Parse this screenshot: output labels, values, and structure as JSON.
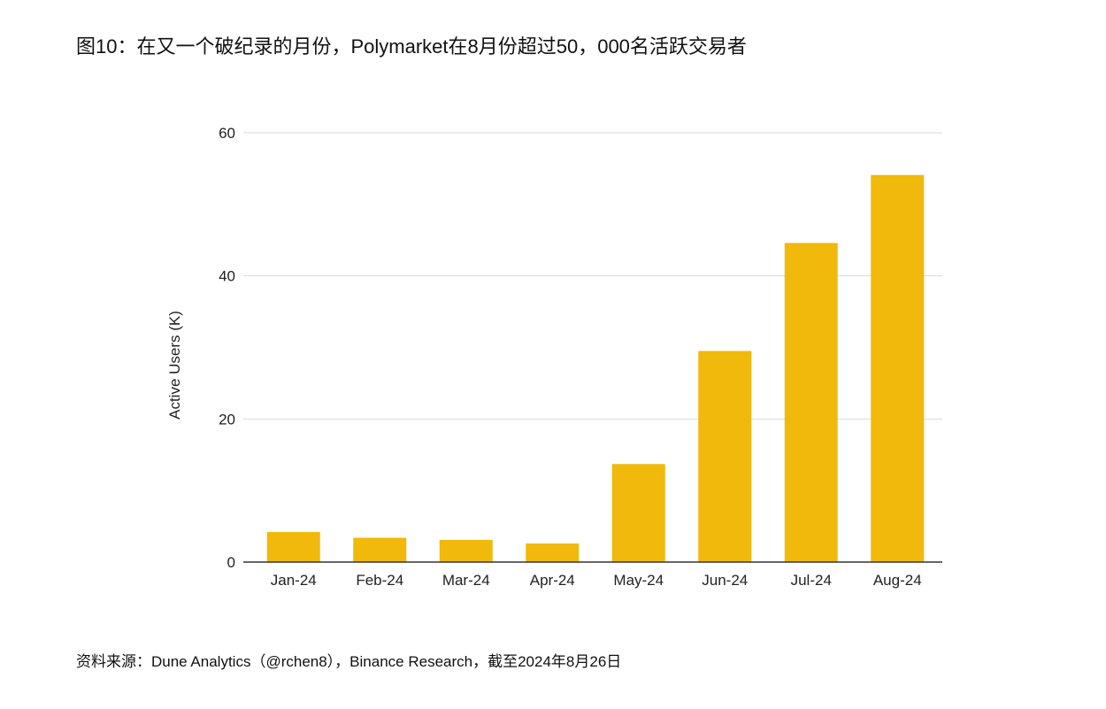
{
  "figure": {
    "title": "图10：在又一个破纪录的月份，Polymarket在8月份超过50，000名活跃交易者",
    "source": "资料来源：Dune Analytics（@rchen8），Binance Research，截至2024年8月26日"
  },
  "chart_data": {
    "type": "bar",
    "title": "",
    "xlabel": "",
    "ylabel": "Active Users (K)",
    "categories": [
      "Jan-24",
      "Feb-24",
      "Mar-24",
      "Apr-24",
      "May-24",
      "Jun-24",
      "Jul-24",
      "Aug-24"
    ],
    "series": [
      {
        "values": [
          4.2,
          3.4,
          3.1,
          2.6,
          13.7,
          29.5,
          44.6,
          54.1
        ]
      }
    ],
    "ylim": [
      0,
      60
    ],
    "yticks": [
      0,
      20,
      40,
      60
    ],
    "grid": true,
    "legend": "none",
    "colors": {
      "bar": "#F0B90B",
      "grid": "#d9d9d9",
      "axis": "#333333"
    }
  }
}
